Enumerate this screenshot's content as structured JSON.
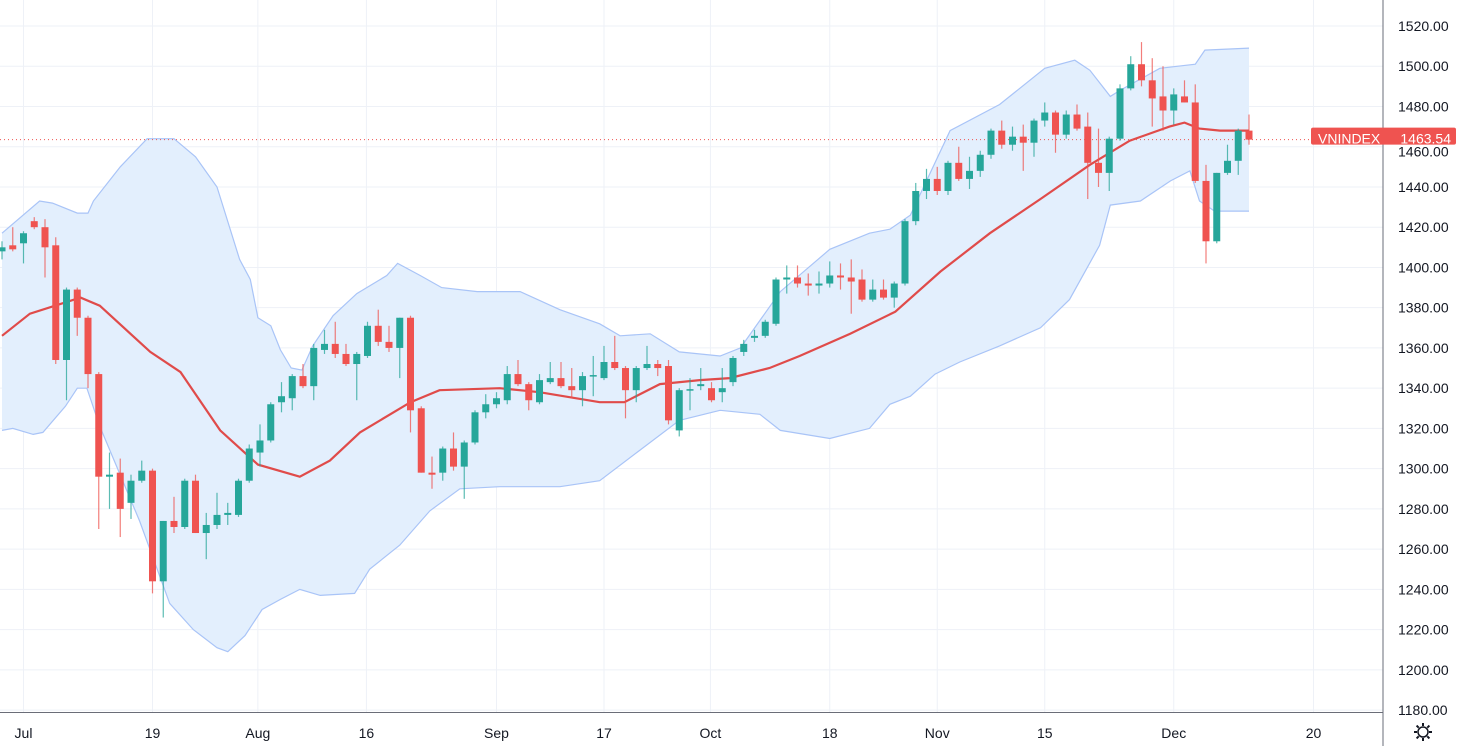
{
  "chart_data": {
    "type": "candlestick",
    "symbol": "VNINDEX",
    "last_price": "1463.54",
    "indicators": [
      "Bollinger Bands (basis, upper, lower)"
    ],
    "ylim": [
      1180,
      1520
    ],
    "y_ticks": [
      "1180.00",
      "1200.00",
      "1220.00",
      "1240.00",
      "1260.00",
      "1280.00",
      "1300.00",
      "1320.00",
      "1340.00",
      "1360.00",
      "1380.00",
      "1400.00",
      "1420.00",
      "1440.00",
      "1460.00",
      "1480.00",
      "1500.00",
      "1520.00"
    ],
    "x_ticks": [
      {
        "label": "Jul",
        "bar": 2
      },
      {
        "label": "19",
        "bar": 14
      },
      {
        "label": "Aug",
        "bar": 23.8
      },
      {
        "label": "16",
        "bar": 33.9
      },
      {
        "label": "Sep",
        "bar": 46
      },
      {
        "label": "17",
        "bar": 56
      },
      {
        "label": "Oct",
        "bar": 65.9
      },
      {
        "label": "18",
        "bar": 77
      },
      {
        "label": "Nov",
        "bar": 87
      },
      {
        "label": "15",
        "bar": 97
      },
      {
        "label": "Dec",
        "bar": 109
      },
      {
        "label": "20",
        "bar": 122
      }
    ],
    "ohlc_fields": [
      "open",
      "high",
      "low",
      "close"
    ],
    "ohlc": [
      [
        1408,
        1413,
        1404,
        1410
      ],
      [
        1411,
        1420,
        1408,
        1409
      ],
      [
        1412,
        1418,
        1402,
        1417
      ],
      [
        1423,
        1425,
        1419,
        1420
      ],
      [
        1420,
        1424,
        1395,
        1410
      ],
      [
        1411,
        1415,
        1352,
        1354
      ],
      [
        1354,
        1390,
        1334,
        1389
      ],
      [
        1389,
        1390,
        1366,
        1375
      ],
      [
        1375,
        1376,
        1340,
        1347
      ],
      [
        1347,
        1348,
        1270,
        1296
      ],
      [
        1296,
        1308,
        1280,
        1297
      ],
      [
        1298,
        1305,
        1266,
        1280
      ],
      [
        1283,
        1297,
        1275,
        1294
      ],
      [
        1294,
        1304,
        1293,
        1299
      ],
      [
        1299,
        1300,
        1238,
        1244
      ],
      [
        1244,
        1274,
        1226,
        1274
      ],
      [
        1274,
        1286,
        1268,
        1271
      ],
      [
        1271,
        1295,
        1270,
        1294
      ],
      [
        1294,
        1297,
        1268,
        1268
      ],
      [
        1268,
        1278,
        1255,
        1272
      ],
      [
        1272,
        1288,
        1270,
        1277
      ],
      [
        1277,
        1283,
        1272,
        1278
      ],
      [
        1277,
        1295,
        1276,
        1294
      ],
      [
        1294,
        1312,
        1293,
        1310
      ],
      [
        1308,
        1322,
        1301,
        1314
      ],
      [
        1314,
        1333,
        1313,
        1332
      ],
      [
        1333,
        1343,
        1328,
        1336
      ],
      [
        1335,
        1347,
        1329,
        1346
      ],
      [
        1346,
        1352,
        1340,
        1341
      ],
      [
        1341,
        1362,
        1334,
        1360
      ],
      [
        1359,
        1369,
        1357,
        1362
      ],
      [
        1362,
        1373,
        1355,
        1357
      ],
      [
        1357,
        1362,
        1351,
        1352
      ],
      [
        1352,
        1358,
        1334,
        1357
      ],
      [
        1356,
        1373,
        1355,
        1371
      ],
      [
        1371,
        1379,
        1361,
        1363
      ],
      [
        1363,
        1371,
        1358,
        1360
      ],
      [
        1360,
        1375,
        1345,
        1375
      ],
      [
        1375,
        1376,
        1318,
        1329
      ],
      [
        1330,
        1331,
        1298,
        1298
      ],
      [
        1298,
        1306,
        1290,
        1297
      ],
      [
        1298,
        1311,
        1294,
        1310
      ],
      [
        1310,
        1318,
        1299,
        1301
      ],
      [
        1301,
        1314,
        1285,
        1313
      ],
      [
        1313,
        1329,
        1312,
        1328
      ],
      [
        1328,
        1337,
        1325,
        1332
      ],
      [
        1332,
        1338,
        1330,
        1335
      ],
      [
        1334,
        1351,
        1332,
        1347
      ],
      [
        1347,
        1354,
        1341,
        1342
      ],
      [
        1342,
        1343,
        1329,
        1334
      ],
      [
        1333,
        1347,
        1332,
        1344
      ],
      [
        1343,
        1353,
        1342,
        1345
      ],
      [
        1345,
        1353,
        1340,
        1341
      ],
      [
        1341,
        1350,
        1335,
        1339
      ],
      [
        1339,
        1348,
        1331,
        1346
      ],
      [
        1346,
        1356,
        1336,
        1346.5
      ],
      [
        1345,
        1361,
        1344,
        1353
      ],
      [
        1353,
        1366,
        1349,
        1350
      ],
      [
        1350,
        1351,
        1325,
        1339
      ],
      [
        1339,
        1351,
        1333,
        1350
      ],
      [
        1350,
        1361,
        1349,
        1352
      ],
      [
        1352,
        1354,
        1346,
        1350
      ],
      [
        1351,
        1354,
        1322,
        1324
      ],
      [
        1319,
        1340,
        1316,
        1339
      ],
      [
        1339,
        1345,
        1329,
        1339.5
      ],
      [
        1341,
        1350,
        1339,
        1342
      ],
      [
        1340,
        1343,
        1333,
        1334
      ],
      [
        1338,
        1350,
        1333,
        1340
      ],
      [
        1343,
        1356,
        1341,
        1355
      ],
      [
        1358,
        1364,
        1356,
        1362
      ],
      [
        1365,
        1369,
        1363,
        1366
      ],
      [
        1366,
        1374,
        1365,
        1373
      ],
      [
        1372,
        1395,
        1371,
        1394
      ],
      [
        1394,
        1401,
        1387,
        1395
      ],
      [
        1395,
        1401,
        1390,
        1392
      ],
      [
        1392,
        1397,
        1386,
        1391
      ],
      [
        1391,
        1398,
        1387,
        1392
      ],
      [
        1392,
        1403,
        1390,
        1396
      ],
      [
        1396,
        1402,
        1389,
        1395
      ],
      [
        1395,
        1404,
        1377,
        1393
      ],
      [
        1394,
        1399,
        1383,
        1384
      ],
      [
        1384,
        1394,
        1383,
        1389
      ],
      [
        1389,
        1394,
        1384,
        1385
      ],
      [
        1385,
        1393,
        1380,
        1392
      ],
      [
        1392,
        1424,
        1391,
        1423
      ],
      [
        1423,
        1442,
        1421,
        1438
      ],
      [
        1438,
        1449,
        1434,
        1444
      ],
      [
        1444,
        1450,
        1436,
        1438
      ],
      [
        1438,
        1453,
        1436,
        1452
      ],
      [
        1452,
        1460,
        1443,
        1444
      ],
      [
        1444,
        1455,
        1439,
        1448
      ],
      [
        1448,
        1458,
        1445,
        1456
      ],
      [
        1456,
        1469,
        1454,
        1468
      ],
      [
        1468,
        1473,
        1459,
        1461
      ],
      [
        1461,
        1470,
        1458,
        1465
      ],
      [
        1465,
        1471,
        1448,
        1462
      ],
      [
        1462,
        1474,
        1455,
        1473
      ],
      [
        1473,
        1482,
        1470,
        1477
      ],
      [
        1477,
        1478,
        1457,
        1466
      ],
      [
        1466,
        1478,
        1464,
        1476
      ],
      [
        1476,
        1481,
        1468,
        1469
      ],
      [
        1470,
        1477,
        1434,
        1452
      ],
      [
        1452,
        1469,
        1440,
        1447
      ],
      [
        1447,
        1465,
        1438,
        1464
      ],
      [
        1464,
        1491,
        1463,
        1489
      ],
      [
        1489,
        1505,
        1488,
        1501
      ],
      [
        1501,
        1512,
        1490,
        1493
      ],
      [
        1493,
        1504,
        1470,
        1484
      ],
      [
        1485,
        1500,
        1468,
        1478
      ],
      [
        1478,
        1489,
        1471,
        1486
      ],
      [
        1485,
        1493,
        1482,
        1482
      ],
      [
        1482,
        1491,
        1442,
        1443
      ],
      [
        1443,
        1451,
        1402,
        1413
      ],
      [
        1413,
        1447,
        1412,
        1447
      ],
      [
        1447,
        1461,
        1446,
        1453
      ],
      [
        1453,
        1469,
        1446,
        1468
      ],
      [
        1468,
        1476,
        1461,
        1463.54
      ]
    ],
    "bb_basis": [
      [
        0,
        1366
      ],
      [
        2.6,
        1377
      ],
      [
        7.3,
        1385
      ],
      [
        9.1,
        1381
      ],
      [
        13.8,
        1358
      ],
      [
        16.6,
        1348
      ],
      [
        20.3,
        1319
      ],
      [
        23.8,
        1302
      ],
      [
        27.7,
        1296
      ],
      [
        30.5,
        1304
      ],
      [
        33.3,
        1318
      ],
      [
        38,
        1333
      ],
      [
        40.7,
        1339
      ],
      [
        46.3,
        1340
      ],
      [
        50,
        1338
      ],
      [
        55.6,
        1333
      ],
      [
        57.9,
        1333
      ],
      [
        61.2,
        1342
      ],
      [
        64.9,
        1344
      ],
      [
        67.7,
        1345
      ],
      [
        71.4,
        1350
      ],
      [
        74.2,
        1356
      ],
      [
        78.9,
        1367
      ],
      [
        83.1,
        1378
      ],
      [
        87.3,
        1398
      ],
      [
        91.9,
        1417
      ],
      [
        96.6,
        1434
      ],
      [
        101.2,
        1451
      ],
      [
        104.9,
        1463
      ],
      [
        108.6,
        1470
      ],
      [
        110,
        1472
      ],
      [
        111.4,
        1469
      ],
      [
        113.3,
        1468
      ],
      [
        116,
        1468
      ]
    ],
    "bb_upper": [
      [
        0,
        1417
      ],
      [
        3.5,
        1433
      ],
      [
        4.7,
        1432
      ],
      [
        7,
        1427
      ],
      [
        8,
        1427
      ],
      [
        8.5,
        1433
      ],
      [
        11,
        1450
      ],
      [
        13.5,
        1464
      ],
      [
        16,
        1464
      ],
      [
        18,
        1455
      ],
      [
        20,
        1440
      ],
      [
        22.1,
        1404
      ],
      [
        23.1,
        1394
      ],
      [
        23.8,
        1375
      ],
      [
        25,
        1371
      ],
      [
        25.9,
        1359
      ],
      [
        26.9,
        1350
      ],
      [
        27.9,
        1349
      ],
      [
        28.9,
        1361
      ],
      [
        30.8,
        1376
      ],
      [
        33,
        1387
      ],
      [
        35.8,
        1396
      ],
      [
        36.8,
        1402
      ],
      [
        38.9,
        1396
      ],
      [
        40.9,
        1390
      ],
      [
        44.2,
        1388
      ],
      [
        48.2,
        1388
      ],
      [
        51.9,
        1379
      ],
      [
        55.6,
        1372
      ],
      [
        57.5,
        1366
      ],
      [
        60.3,
        1367
      ],
      [
        63,
        1358
      ],
      [
        66.8,
        1356
      ],
      [
        68.7,
        1360
      ],
      [
        72.4,
        1388
      ],
      [
        77,
        1409
      ],
      [
        80.7,
        1417
      ],
      [
        82.6,
        1419
      ],
      [
        84.5,
        1426
      ],
      [
        88.2,
        1468
      ],
      [
        92.8,
        1481
      ],
      [
        97,
        1499
      ],
      [
        99.8,
        1503
      ],
      [
        101.2,
        1498
      ],
      [
        103.1,
        1485
      ],
      [
        104,
        1488
      ],
      [
        107.7,
        1499
      ],
      [
        111,
        1501
      ],
      [
        111.9,
        1508
      ],
      [
        116,
        1509
      ]
    ],
    "bb_lower": [
      [
        0,
        1319
      ],
      [
        1,
        1320
      ],
      [
        2.9,
        1317
      ],
      [
        3.8,
        1318
      ],
      [
        5.9,
        1331
      ],
      [
        7,
        1340
      ],
      [
        7.9,
        1340
      ],
      [
        9.1,
        1321
      ],
      [
        12.8,
        1274
      ],
      [
        15.6,
        1233
      ],
      [
        17.8,
        1220
      ],
      [
        20,
        1211
      ],
      [
        21,
        1209
      ],
      [
        22.6,
        1217
      ],
      [
        24.2,
        1230
      ],
      [
        25.9,
        1235
      ],
      [
        27.7,
        1240
      ],
      [
        29.6,
        1237
      ],
      [
        32.8,
        1238
      ],
      [
        34.2,
        1250
      ],
      [
        37,
        1262
      ],
      [
        39.8,
        1279
      ],
      [
        42.6,
        1290
      ],
      [
        46.3,
        1291
      ],
      [
        51.9,
        1291
      ],
      [
        55.6,
        1294
      ],
      [
        59.3,
        1309
      ],
      [
        63,
        1324
      ],
      [
        66.8,
        1329
      ],
      [
        70.5,
        1327
      ],
      [
        72.4,
        1319
      ],
      [
        77,
        1315
      ],
      [
        80.7,
        1320
      ],
      [
        82.6,
        1332
      ],
      [
        84.5,
        1336
      ],
      [
        86.8,
        1347
      ],
      [
        89.1,
        1353
      ],
      [
        92.8,
        1361
      ],
      [
        96.6,
        1370
      ],
      [
        99.3,
        1384
      ],
      [
        102.1,
        1411
      ],
      [
        103.1,
        1431
      ],
      [
        105.9,
        1433
      ],
      [
        108.7,
        1443
      ],
      [
        110.5,
        1448
      ],
      [
        111.4,
        1433
      ],
      [
        112.8,
        1428
      ],
      [
        116,
        1428
      ]
    ],
    "colors": {
      "up": "#26a69a",
      "down": "#ef5350",
      "basis": "#e04b4a",
      "band_line": "#a9c4f7",
      "band_fill": "#e3effd",
      "grid": "#eef1f7",
      "axis": "#6a6d78"
    },
    "grid": true
  },
  "settings_icon": "gear-icon"
}
